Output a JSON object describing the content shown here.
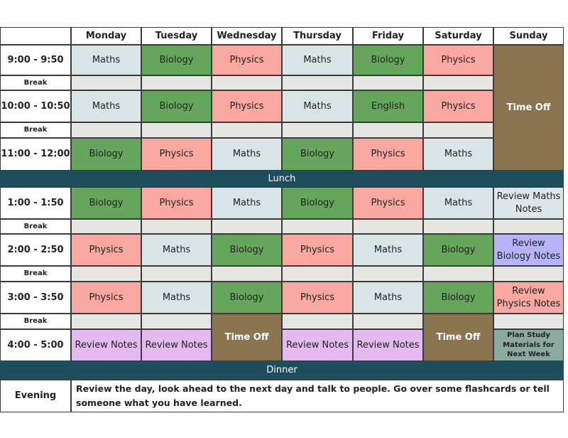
{
  "days": [
    "Monday",
    "Tuesday",
    "Wednesday",
    "Thursday",
    "Friday",
    "Saturday",
    "Sunday"
  ],
  "times": [
    "9:00 - 9:50",
    "10:00 - 10:50",
    "11:00 - 12:00",
    "1:00 - 1:50",
    "2:00 - 2:50",
    "3:00 - 3:50",
    "4:00 - 5:00"
  ],
  "break_label": "Break",
  "lunch_label": "Lunch",
  "dinner_label": "Dinner",
  "evening": {
    "label": "Evening",
    "text": "Review the day, look ahead to the next day and talk to people. Go over some flashcards or tell someone what you have learned."
  },
  "sessions": [
    [
      "Maths",
      "Biology",
      "Physics",
      "Maths",
      "Biology",
      "Physics",
      "Time Off"
    ],
    [
      "Maths",
      "Biology",
      "Physics",
      "Maths",
      "English",
      "Physics",
      ""
    ],
    [
      "Biology",
      "Physics",
      "Maths",
      "Biology",
      "Physics",
      "Maths",
      ""
    ],
    [
      "Biology",
      "Physics",
      "Maths",
      "Biology",
      "Physics",
      "Maths",
      "Review Maths Notes"
    ],
    [
      "Physics",
      "Maths",
      "Biology",
      "Physics",
      "Maths",
      "Biology",
      "Review Biology Notes"
    ],
    [
      "Physics",
      "Maths",
      "Biology",
      "Physics",
      "Maths",
      "Biology",
      "Review Physics Notes"
    ],
    [
      "Review Notes",
      "Review Notes",
      "Time Off",
      "Review Notes",
      "Review Notes",
      "Time Off",
      "Plan Study Materials for Next Week"
    ]
  ],
  "colors": {
    "maths": "#d8e4e6",
    "biology": "#66a65c",
    "physics": "#f8a8a0",
    "english": "#66a65c",
    "time_off": "#8a7550",
    "review_notes": "#e3b9f0",
    "review_maths": "#dde6e8",
    "review_biology": "#b6b3f7",
    "plan_study": "#8aaa9f",
    "band": "#1e4d5c",
    "break_fill": "#e6e6e2"
  }
}
